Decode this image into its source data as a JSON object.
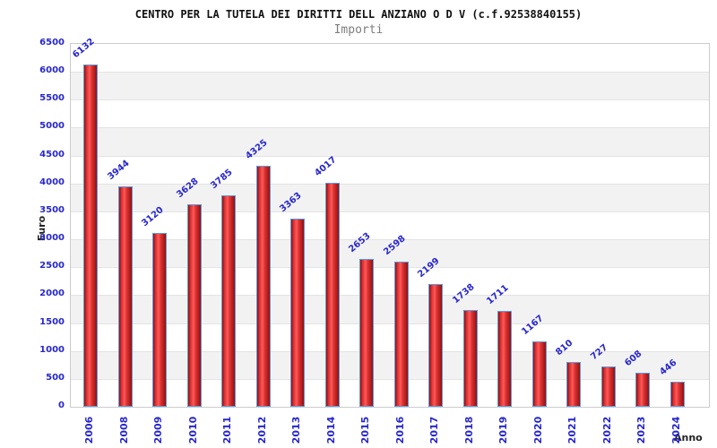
{
  "header": {
    "title": "CENTRO PER LA TUTELA DEI DIRITTI DELL ANZIANO O D V (c.f.92538840155)",
    "subtitle": "Importi"
  },
  "chart_data": {
    "type": "bar",
    "title": "CENTRO PER LA TUTELA DEI DIRITTI DELL ANZIANO O D V (c.f.92538840155)",
    "subtitle": "Importi",
    "xlabel": "Anno",
    "ylabel": "Euro",
    "categories": [
      "2006",
      "2008",
      "2009",
      "2010",
      "2011",
      "2012",
      "2013",
      "2014",
      "2015",
      "2016",
      "2017",
      "2018",
      "2019",
      "2020",
      "2021",
      "2022",
      "2023",
      "2024"
    ],
    "values": [
      6132,
      3944,
      3120,
      3628,
      3785,
      4325,
      3363,
      4017,
      2653,
      2598,
      2199,
      1738,
      1711,
      1167,
      810,
      727,
      608,
      446
    ],
    "ylim": [
      0,
      6500
    ],
    "ytick_step": 500,
    "yticks": [
      0,
      500,
      1000,
      1500,
      2000,
      2500,
      3000,
      3500,
      4000,
      4500,
      5000,
      5500,
      6000,
      6500
    ],
    "grid": "horizontal-bands",
    "legend_position": "none",
    "bar_value_labels_rotated": true,
    "colors": {
      "label_blue": "#2727cc",
      "bar_dark": "#8f1111",
      "bar_mid": "#d83030",
      "bar_light": "#ff5a5a",
      "bar_mid2": "#e03434",
      "bar_border": "#5b9ce0",
      "band_gray": "#f2f2f2",
      "grid_line": "#e3e3e3",
      "plot_border": "#cccccc",
      "axis_text": "#222222",
      "title_color": "#111111",
      "subtitle_color": "#7d7d7d"
    }
  }
}
